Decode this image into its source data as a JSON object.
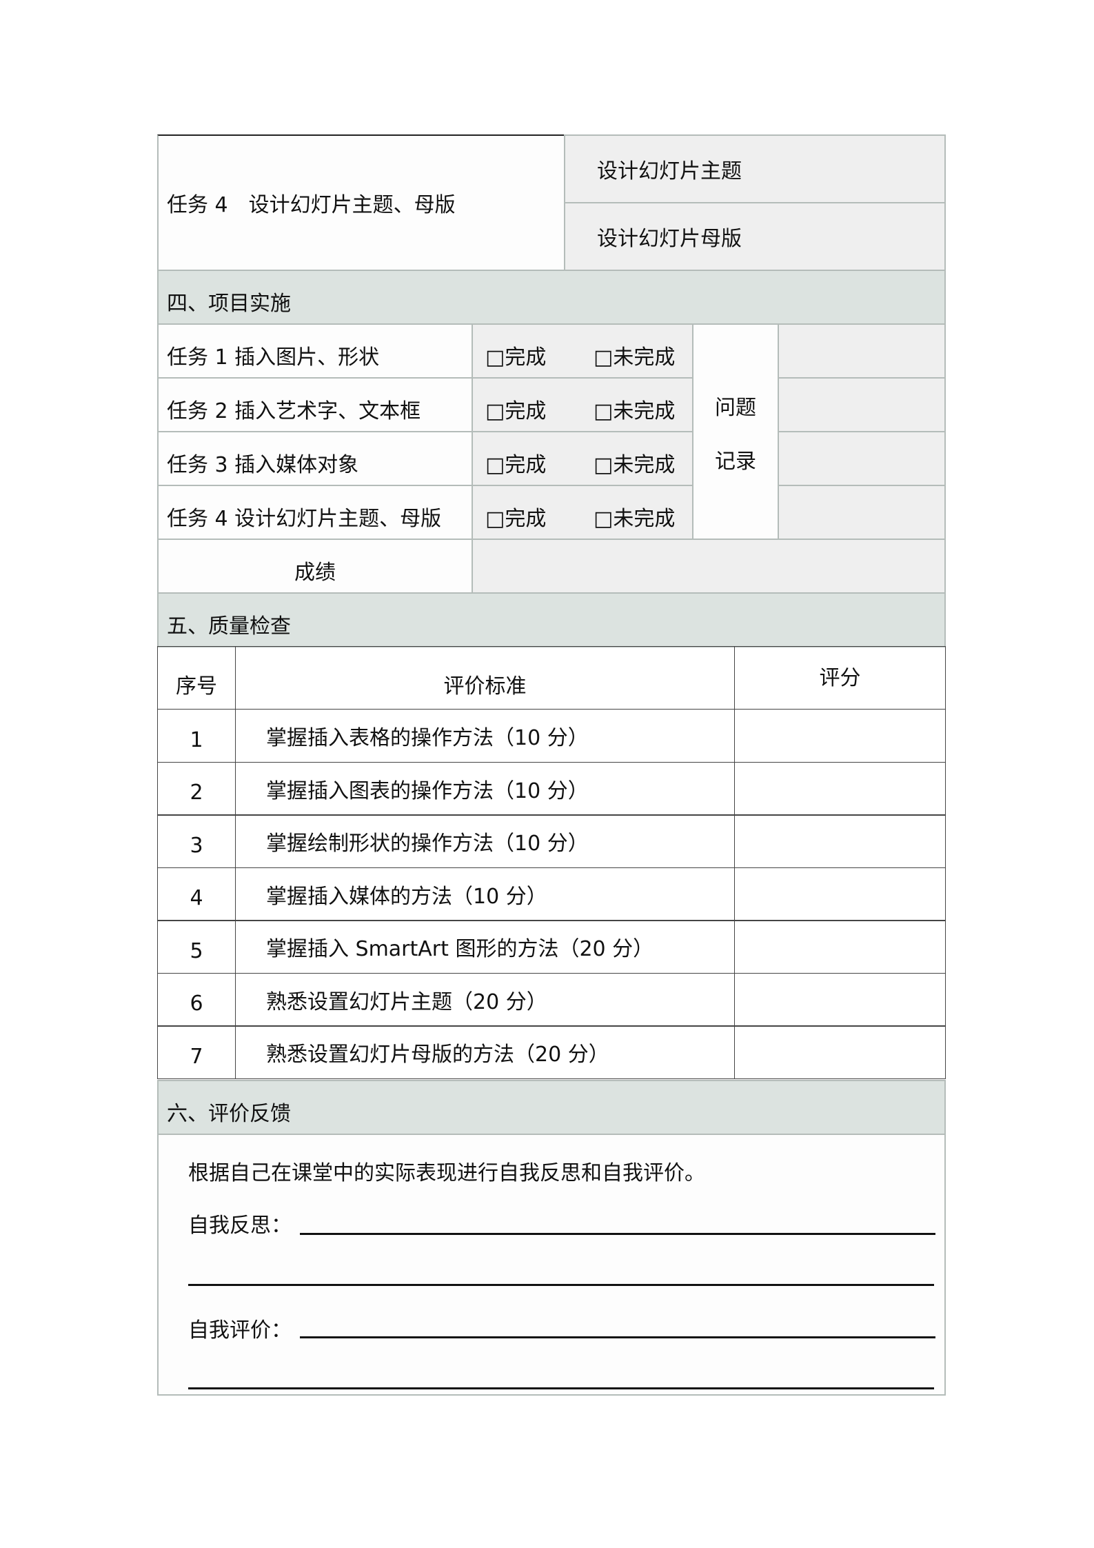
{
  "task4_block": {
    "label": "任务 4　设计幻灯片主题、母版",
    "sub": [
      "设计幻灯片主题",
      "设计幻灯片母版"
    ]
  },
  "section4": {
    "title": "四、项目实施",
    "tasks": [
      "任务 1  插入图片、形状",
      "任务 2  插入艺术字、文本框",
      "任务 3  插入媒体对象",
      "任务 4  设计幻灯片主题、母版"
    ],
    "done": "□完成",
    "not_done": "□未完成",
    "problem_label_1": "问题",
    "problem_label_2": "记录",
    "score_label": "成绩"
  },
  "section5": {
    "title": "五、质量检查",
    "headers": [
      "序号",
      "评价标准",
      "评分"
    ],
    "rows": [
      {
        "n": "1",
        "c": "掌握插入表格的操作方法（10 分）"
      },
      {
        "n": "2",
        "c": "掌握插入图表的操作方法（10 分）"
      },
      {
        "n": "3",
        "c": "掌握绘制形状的操作方法（10 分）"
      },
      {
        "n": "4",
        "c": "掌握插入媒体的方法（10 分）"
      },
      {
        "n": "5",
        "c": "掌握插入 SmartArt 图形的方法（20 分）"
      },
      {
        "n": "6",
        "c": "熟悉设置幻灯片主题（20 分）"
      },
      {
        "n": "7",
        "c": "熟悉设置幻灯片母版的方法（20 分）"
      }
    ]
  },
  "section6": {
    "title": "六、评价反馈",
    "intro": "根据自己在课堂中的实际表现进行自我反思和自我评价。",
    "reflect_label": "自我反思：",
    "evaluate_label": "自我评价："
  }
}
